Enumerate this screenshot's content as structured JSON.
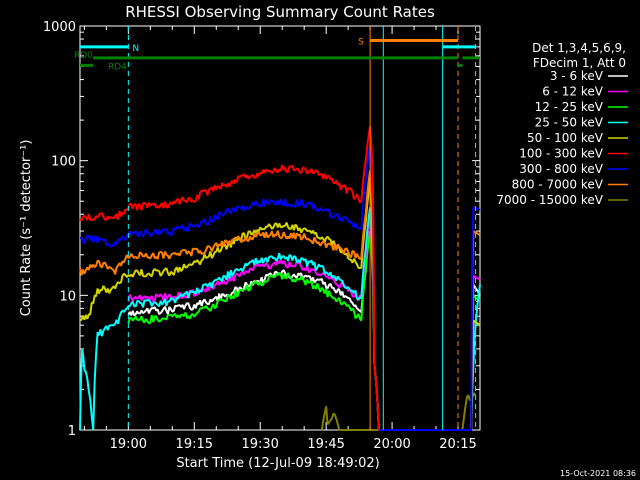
{
  "chart_data": {
    "type": "line",
    "title": "RHESSI Observing Summary Count Rates",
    "xlabel": "Start Time (12-Jul-09 18:49:02)",
    "ylabel": "Count Rate (s⁻¹ detector⁻¹)",
    "yscale": "log",
    "ylim": [
      1,
      1000
    ],
    "y_ticks": [
      {
        "value": 1,
        "label": "1"
      },
      {
        "value": 10,
        "label": "10"
      },
      {
        "value": 100,
        "label": "100"
      },
      {
        "value": 1000,
        "label": "1000"
      }
    ],
    "xlim_minutes": [
      -11,
      80
    ],
    "x_ticks": [
      {
        "value": 0,
        "label": "19:00"
      },
      {
        "value": 15,
        "label": "19:15"
      },
      {
        "value": 30,
        "label": "19:30"
      },
      {
        "value": 45,
        "label": "19:45"
      },
      {
        "value": 60,
        "label": "20:00"
      },
      {
        "value": 75,
        "label": "20:15"
      }
    ],
    "legend": {
      "placement": "right",
      "header": [
        "Det 1,3,4,5,6,9,",
        "FDecim 1, Att 0"
      ],
      "entries": [
        {
          "label": "3 - 6 keV",
          "color": "#ffffff"
        },
        {
          "label": "6 - 12 keV",
          "color": "#ff00ff"
        },
        {
          "label": "12 - 25 keV",
          "color": "#00ff00"
        },
        {
          "label": "25 - 50 keV",
          "color": "#00ffff"
        },
        {
          "label": "50 - 100 keV",
          "color": "#d4d400"
        },
        {
          "label": "100 - 300 keV",
          "color": "#ff0000"
        },
        {
          "label": "300 - 800 keV",
          "color": "#0000ff"
        },
        {
          "label": "800 - 7000 keV",
          "color": "#ff8000"
        },
        {
          "label": "7000 - 15000 keV",
          "color": "#808000"
        }
      ]
    },
    "series": [
      {
        "name": "7000 - 15000 keV",
        "color": "#808000",
        "points": [
          [
            44,
            1
          ],
          [
            45,
            1.5
          ],
          [
            45.3,
            1.1
          ],
          [
            47,
            1.3
          ],
          [
            48,
            1
          ],
          [
            76,
            1
          ],
          [
            77,
            1.7
          ],
          [
            79,
            1.8
          ]
        ]
      },
      {
        "name": "3 - 6 keV",
        "color": "#ffffff",
        "points": [
          [
            0,
            7.5
          ],
          [
            5,
            7.6
          ],
          [
            10,
            7.8
          ],
          [
            15,
            8.5
          ],
          [
            20,
            9.5
          ],
          [
            25,
            11
          ],
          [
            30,
            13
          ],
          [
            35,
            14.5
          ],
          [
            40,
            14
          ],
          [
            45,
            12
          ],
          [
            50,
            9.5
          ],
          [
            52,
            8
          ],
          [
            53,
            7.5
          ],
          [
            54,
            15
          ],
          [
            55,
            45
          ],
          [
            56,
            3
          ],
          [
            57,
            1
          ],
          [
            78,
            1
          ],
          [
            78.5,
            12
          ],
          [
            80,
            10
          ]
        ]
      },
      {
        "name": "12 - 25 keV",
        "color": "#00ff00",
        "points": [
          [
            0,
            6.5
          ],
          [
            5,
            6.7
          ],
          [
            10,
            6.8
          ],
          [
            15,
            7.2
          ],
          [
            20,
            8.5
          ],
          [
            25,
            10.5
          ],
          [
            30,
            12.5
          ],
          [
            35,
            14
          ],
          [
            40,
            13
          ],
          [
            45,
            10.5
          ],
          [
            50,
            8
          ],
          [
            53,
            6.5
          ],
          [
            54,
            15
          ],
          [
            55,
            30
          ],
          [
            56,
            3
          ],
          [
            57,
            1
          ],
          [
            78,
            1
          ],
          [
            78.5,
            10
          ],
          [
            80,
            9
          ]
        ]
      },
      {
        "name": "6 - 12 keV",
        "color": "#ff00ff",
        "points": [
          [
            0,
            9.5
          ],
          [
            5,
            9.6
          ],
          [
            10,
            9.8
          ],
          [
            15,
            10.5
          ],
          [
            20,
            12
          ],
          [
            25,
            14
          ],
          [
            30,
            16.5
          ],
          [
            35,
            17.5
          ],
          [
            40,
            16.5
          ],
          [
            45,
            14
          ],
          [
            50,
            11
          ],
          [
            53,
            9.5
          ],
          [
            54,
            20
          ],
          [
            55,
            40
          ],
          [
            56,
            3
          ],
          [
            57,
            1
          ],
          [
            78,
            1
          ],
          [
            78.5,
            14
          ],
          [
            80,
            13
          ]
        ]
      },
      {
        "name": "25 - 50 keV",
        "color": "#00ffff",
        "points": [
          [
            -11,
            1
          ],
          [
            -10.5,
            4
          ],
          [
            -10,
            3
          ],
          [
            -8,
            1
          ],
          [
            -7,
            5
          ],
          [
            -4,
            6
          ],
          [
            -3,
            6
          ],
          [
            0,
            8.5
          ],
          [
            5,
            8.7
          ],
          [
            10,
            9
          ],
          [
            15,
            10.5
          ],
          [
            20,
            12.5
          ],
          [
            25,
            15.5
          ],
          [
            30,
            18.5
          ],
          [
            35,
            19.5
          ],
          [
            40,
            18
          ],
          [
            45,
            15
          ],
          [
            50,
            11.5
          ],
          [
            53,
            9.5
          ],
          [
            54,
            22
          ],
          [
            55,
            45
          ],
          [
            56,
            3
          ],
          [
            57,
            1
          ],
          [
            78,
            1
          ],
          [
            78.5,
            3
          ],
          [
            80,
            12
          ]
        ]
      },
      {
        "name": "50 - 100 keV",
        "color": "#d4d400",
        "points": [
          [
            -11,
            6.5
          ],
          [
            -9,
            7
          ],
          [
            -7,
            11
          ],
          [
            -4,
            11
          ],
          [
            -3,
            12
          ],
          [
            0,
            14.5
          ],
          [
            5,
            14.7
          ],
          [
            10,
            15
          ],
          [
            15,
            17
          ],
          [
            20,
            21
          ],
          [
            25,
            26
          ],
          [
            30,
            31
          ],
          [
            35,
            33
          ],
          [
            40,
            31
          ],
          [
            45,
            26
          ],
          [
            50,
            20
          ],
          [
            53,
            16
          ],
          [
            54,
            35
          ],
          [
            55,
            70
          ],
          [
            56,
            3
          ],
          [
            57,
            1
          ],
          [
            78,
            1
          ],
          [
            78.5,
            6.5
          ],
          [
            80,
            6
          ]
        ]
      },
      {
        "name": "800 - 7000 keV",
        "color": "#ff8000",
        "points": [
          [
            -11,
            15
          ],
          [
            -9,
            16
          ],
          [
            -7,
            17
          ],
          [
            -4,
            16
          ],
          [
            -3,
            15
          ],
          [
            0,
            19.5
          ],
          [
            5,
            19.8
          ],
          [
            10,
            20
          ],
          [
            15,
            21
          ],
          [
            20,
            23
          ],
          [
            25,
            26
          ],
          [
            30,
            28
          ],
          [
            35,
            28.5
          ],
          [
            40,
            27
          ],
          [
            45,
            24
          ],
          [
            50,
            21
          ],
          [
            53,
            19
          ],
          [
            54,
            40
          ],
          [
            55,
            85
          ],
          [
            56,
            3
          ],
          [
            57,
            1
          ],
          [
            78,
            1
          ],
          [
            78.5,
            30
          ],
          [
            80,
            28
          ]
        ]
      },
      {
        "name": "300 - 800 keV",
        "color": "#0000ff",
        "points": [
          [
            -11,
            25
          ],
          [
            -9,
            27
          ],
          [
            -7,
            26
          ],
          [
            -4,
            23
          ],
          [
            -3,
            24
          ],
          [
            0,
            28.5
          ],
          [
            5,
            29
          ],
          [
            10,
            30
          ],
          [
            15,
            33
          ],
          [
            20,
            38
          ],
          [
            25,
            44
          ],
          [
            30,
            48.5
          ],
          [
            35,
            50
          ],
          [
            40,
            48
          ],
          [
            45,
            42
          ],
          [
            50,
            35
          ],
          [
            53,
            31
          ],
          [
            54,
            70
          ],
          [
            55,
            130
          ],
          [
            56,
            3
          ],
          [
            57,
            1
          ],
          [
            78,
            1
          ],
          [
            78.5,
            45
          ],
          [
            80,
            43
          ]
        ]
      },
      {
        "name": "100 - 300 keV",
        "color": "#ff0000",
        "points": [
          [
            -11,
            35
          ],
          [
            -9,
            38
          ],
          [
            -7,
            40
          ],
          [
            -4,
            38
          ],
          [
            -3,
            37
          ],
          [
            0,
            45
          ],
          [
            5,
            46
          ],
          [
            10,
            48
          ],
          [
            15,
            53
          ],
          [
            20,
            62
          ],
          [
            25,
            72
          ],
          [
            30,
            82
          ],
          [
            35,
            88
          ],
          [
            40,
            85
          ],
          [
            45,
            75
          ],
          [
            50,
            60
          ],
          [
            53,
            50
          ],
          [
            54,
            100
          ],
          [
            55,
            180
          ],
          [
            56,
            3
          ],
          [
            57,
            1
          ]
        ]
      }
    ],
    "vertical_lines": [
      {
        "x": 0,
        "color": "#00ffff",
        "style": "dashed"
      },
      {
        "x": 55,
        "color": "#ff8000",
        "style": "solid"
      },
      {
        "x": 58,
        "color": "#00ffff",
        "style": "solid"
      },
      {
        "x": 71.5,
        "color": "#00ffff",
        "style": "solid"
      },
      {
        "x": 75,
        "color": "#ff8000",
        "style": "dashed"
      },
      {
        "x": 79,
        "color": "#00ffff",
        "style": "dashed"
      }
    ],
    "flag_bars": [
      {
        "label": "N",
        "color": "#00ffff",
        "segments": [
          [
            -11,
            0
          ],
          [
            71.5,
            79
          ]
        ],
        "level": 700
      },
      {
        "label": "S",
        "color": "#ff8000",
        "segments": [
          [
            55,
            75
          ]
        ],
        "level": 780
      },
      {
        "label": "RD0",
        "color": "#008000",
        "segments": [
          [
            -8,
            75
          ],
          [
            76,
            80
          ]
        ],
        "level": 580
      },
      {
        "label": "RD4",
        "color": "#008000",
        "segments": [
          [
            -11,
            -8
          ],
          [
            75,
            76
          ]
        ],
        "level": 510
      }
    ],
    "grid": false
  },
  "footer": {
    "timestamp": "15-Oct-2021 08:36"
  }
}
